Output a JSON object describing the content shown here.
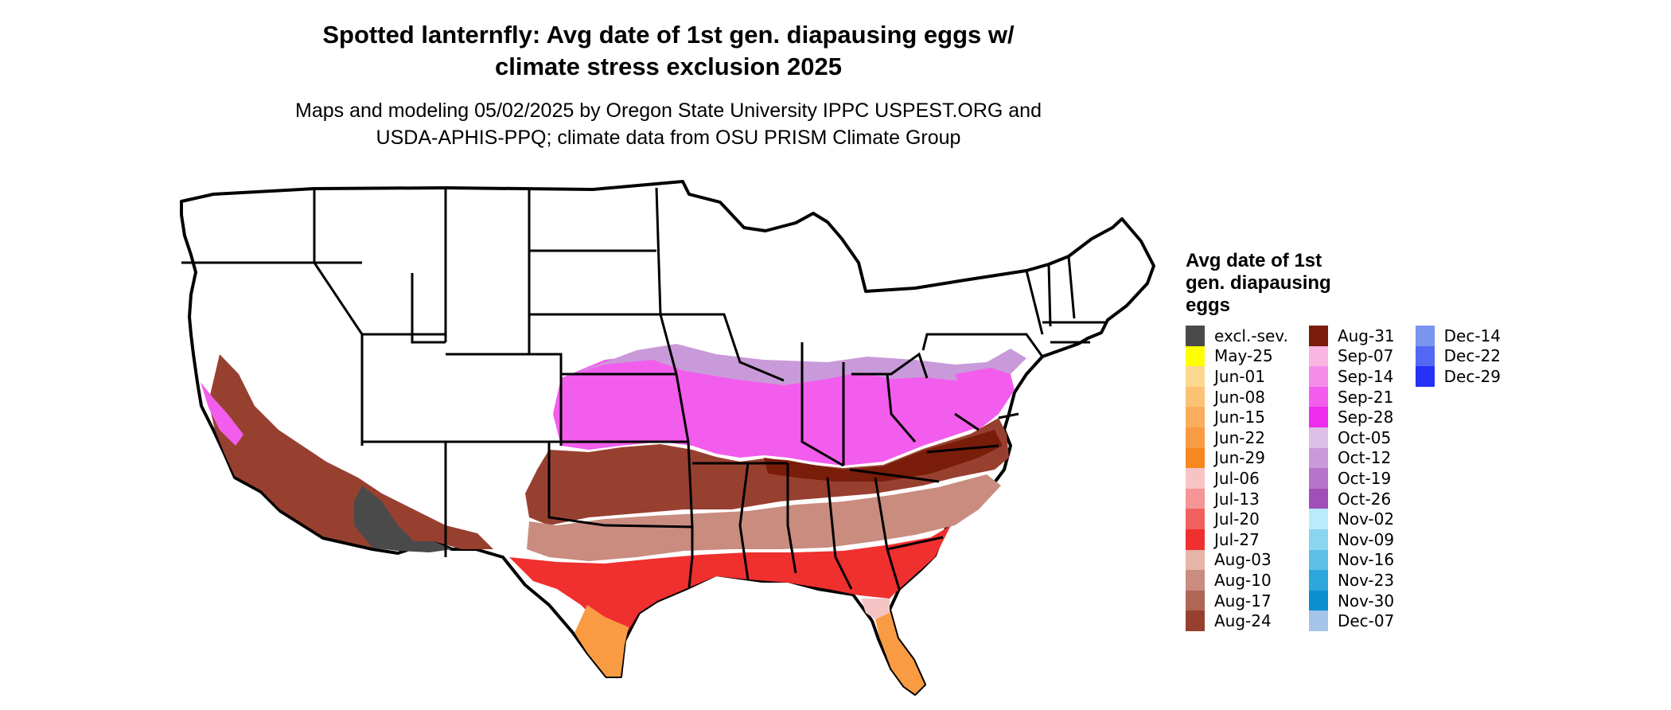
{
  "title_line1": "Spotted lanternfly: Avg date of 1st gen. diapausing eggs w/",
  "title_line2": "climate stress exclusion 2025",
  "subtitle_line1": "Maps and modeling 05/02/2025 by Oregon State University IPPC USPEST.ORG and",
  "subtitle_line2": "USDA-APHIS-PPQ; climate data from OSU PRISM Climate Group",
  "legend": {
    "title_line1": "Avg date of 1st",
    "title_line2": "gen. diapausing",
    "title_line3": "eggs",
    "items": [
      {
        "label": "excl.-sev.",
        "color": "#4a4a4a"
      },
      {
        "label": "May-25",
        "color": "#ffff00"
      },
      {
        "label": "Jun-01",
        "color": "#fcd78f"
      },
      {
        "label": "Jun-08",
        "color": "#fbc275"
      },
      {
        "label": "Jun-15",
        "color": "#faad5c"
      },
      {
        "label": "Jun-22",
        "color": "#f99b43"
      },
      {
        "label": "Jun-29",
        "color": "#f7871f"
      },
      {
        "label": "Jul-06",
        "color": "#f6c4c4"
      },
      {
        "label": "Jul-13",
        "color": "#f59595"
      },
      {
        "label": "Jul-20",
        "color": "#f26060"
      },
      {
        "label": "Jul-27",
        "color": "#f02f2f"
      },
      {
        "label": "Aug-03",
        "color": "#e5b5a7"
      },
      {
        "label": "Aug-10",
        "color": "#c98c7f"
      },
      {
        "label": "Aug-17",
        "color": "#b06654"
      },
      {
        "label": "Aug-24",
        "color": "#984030"
      },
      {
        "label": "Aug-31",
        "color": "#7a1c0a"
      },
      {
        "label": "Sep-07",
        "color": "#f9b6e2"
      },
      {
        "label": "Sep-14",
        "color": "#f58cea"
      },
      {
        "label": "Sep-21",
        "color": "#f35ded"
      },
      {
        "label": "Sep-28",
        "color": "#ee2cee"
      },
      {
        "label": "Oct-05",
        "color": "#dcc0e7"
      },
      {
        "label": "Oct-12",
        "color": "#c99ad9"
      },
      {
        "label": "Oct-19",
        "color": "#b675c9"
      },
      {
        "label": "Oct-26",
        "color": "#9f4fb7"
      },
      {
        "label": "Nov-02",
        "color": "#b9ecfb"
      },
      {
        "label": "Nov-09",
        "color": "#8ad5f0"
      },
      {
        "label": "Nov-16",
        "color": "#5bbfe6"
      },
      {
        "label": "Nov-23",
        "color": "#2da7db"
      },
      {
        "label": "Nov-30",
        "color": "#0a8fcf"
      },
      {
        "label": "Dec-07",
        "color": "#a6c4e9"
      },
      {
        "label": "Dec-14",
        "color": "#7b94ee"
      },
      {
        "label": "Dec-22",
        "color": "#5568f3"
      },
      {
        "label": "Dec-29",
        "color": "#2730f7"
      }
    ]
  }
}
